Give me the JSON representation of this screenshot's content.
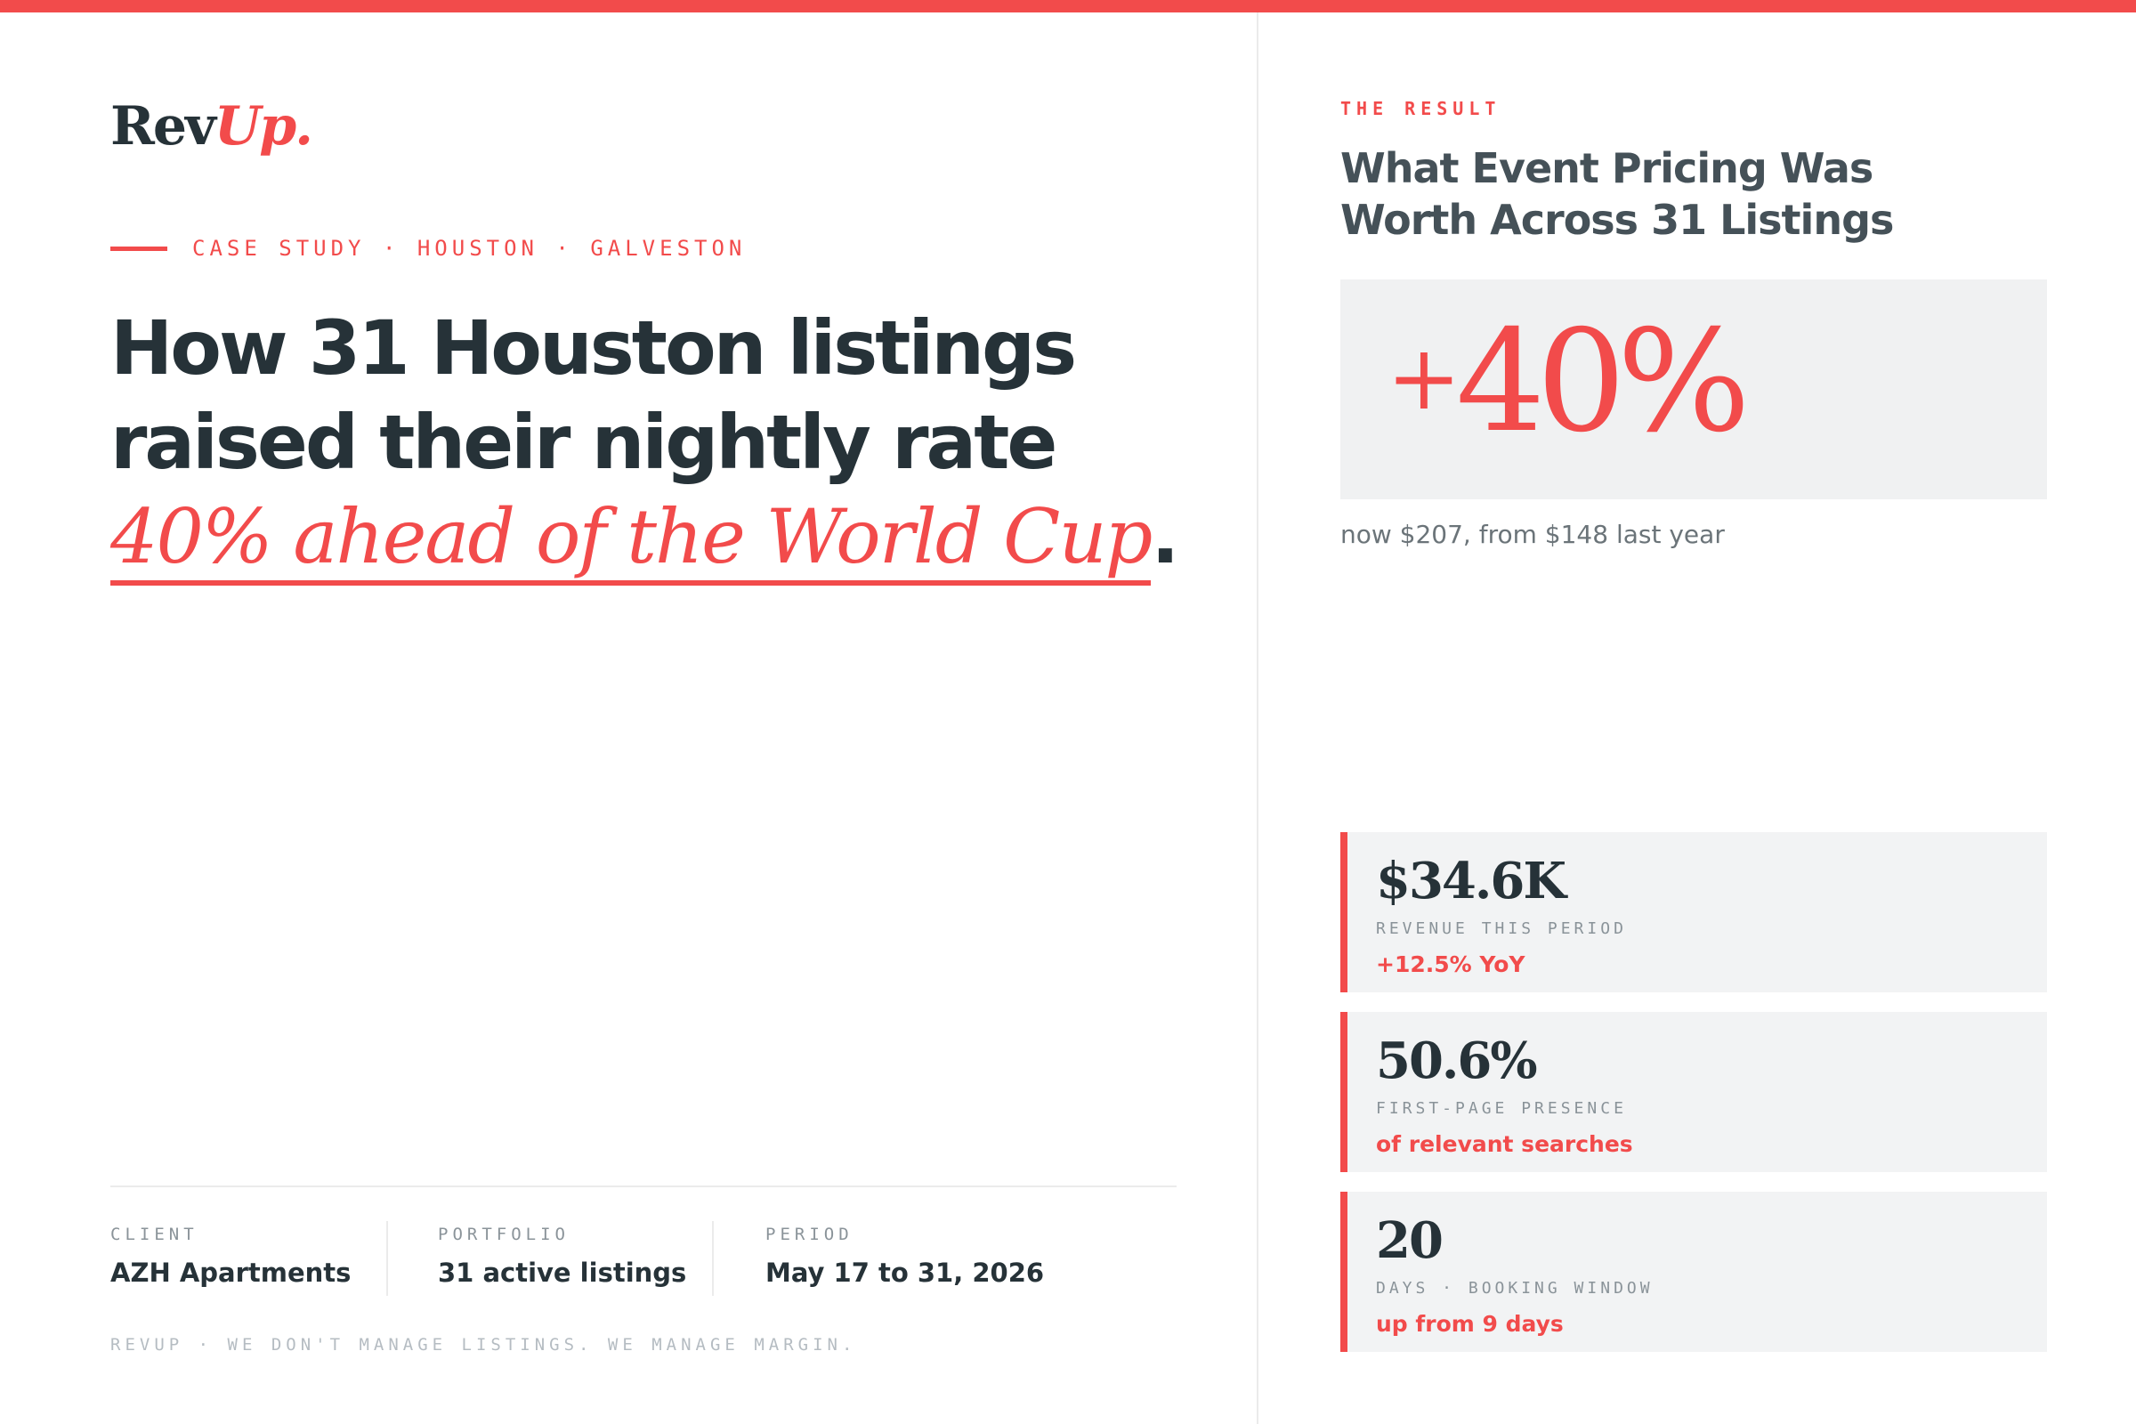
{
  "brand": {
    "logo_main": "Rev",
    "logo_accent": "Up."
  },
  "hero": {
    "eyebrow": "CASE STUDY · HOUSTON · GALVESTON",
    "headline_part1": "How 31 Houston listings raised their nightly rate ",
    "headline_accent": "40% ahead of the World Cup",
    "headline_end": "."
  },
  "meta": [
    {
      "label": "CLIENT",
      "value": "AZH Apartments"
    },
    {
      "label": "PORTFOLIO",
      "value": "31 active listings"
    },
    {
      "label": "PERIOD",
      "value": "May 17 to 31, 2026"
    }
  ],
  "footer": {
    "note": "REVUP · WE DON'T MANAGE LISTINGS. WE MANAGE MARGIN."
  },
  "result": {
    "eyebrow": "THE RESULT",
    "title": "What Event Pricing Was Worth Across 31 Listings",
    "big_plus": "+",
    "big_value": "40%",
    "big_sub": "now $207, from $148 last year"
  },
  "cards": [
    {
      "value": "$34.6K",
      "label": "REVENUE THIS PERIOD",
      "note": "+12.5% YoY"
    },
    {
      "value": "50.6%",
      "label": "FIRST-PAGE PRESENCE",
      "note": "of relevant searches"
    },
    {
      "value": "20",
      "label": "DAYS · BOOKING WINDOW",
      "note": "up from 9 days"
    }
  ],
  "colors": {
    "accent": "#f24b4b",
    "ink": "#263238",
    "panel": "#f0f1f2"
  }
}
